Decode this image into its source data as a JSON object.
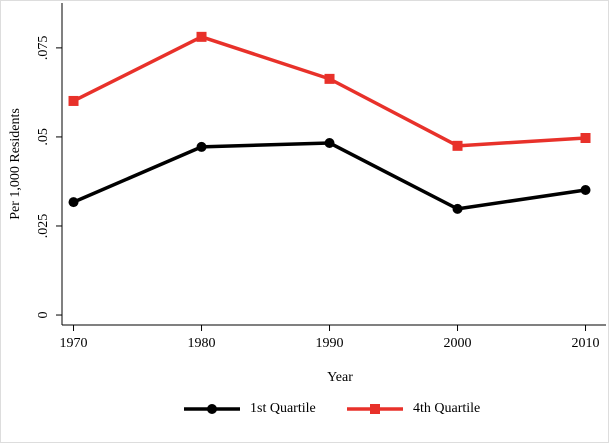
{
  "chart_data": {
    "type": "line",
    "x_label": "Year",
    "y_label": "Per 1,000 Residents",
    "x": [
      1970,
      1980,
      1990,
      2000,
      2010
    ],
    "series": [
      {
        "name": "1st Quartile",
        "color": "#000000",
        "marker": "circle",
        "values": [
          0.0317,
          0.0472,
          0.0483,
          0.0298,
          0.0351
        ]
      },
      {
        "name": "4th Quartile",
        "color": "#e8312a",
        "marker": "square",
        "values": [
          0.0601,
          0.0781,
          0.0663,
          0.0475,
          0.0497
        ]
      }
    ],
    "xlim": [
      1969.1,
      2011.6
    ],
    "ylim": [
      -0.0028,
      0.0876
    ],
    "xticks": [
      1970,
      1980,
      1990,
      2000,
      2010
    ],
    "yticks": [
      0,
      {
        "value": 0.025,
        "label": ".025"
      },
      {
        "value": 0.05,
        "label": ".05"
      },
      {
        "value": 0.075,
        "label": ".075"
      }
    ],
    "legend": "bottom"
  }
}
